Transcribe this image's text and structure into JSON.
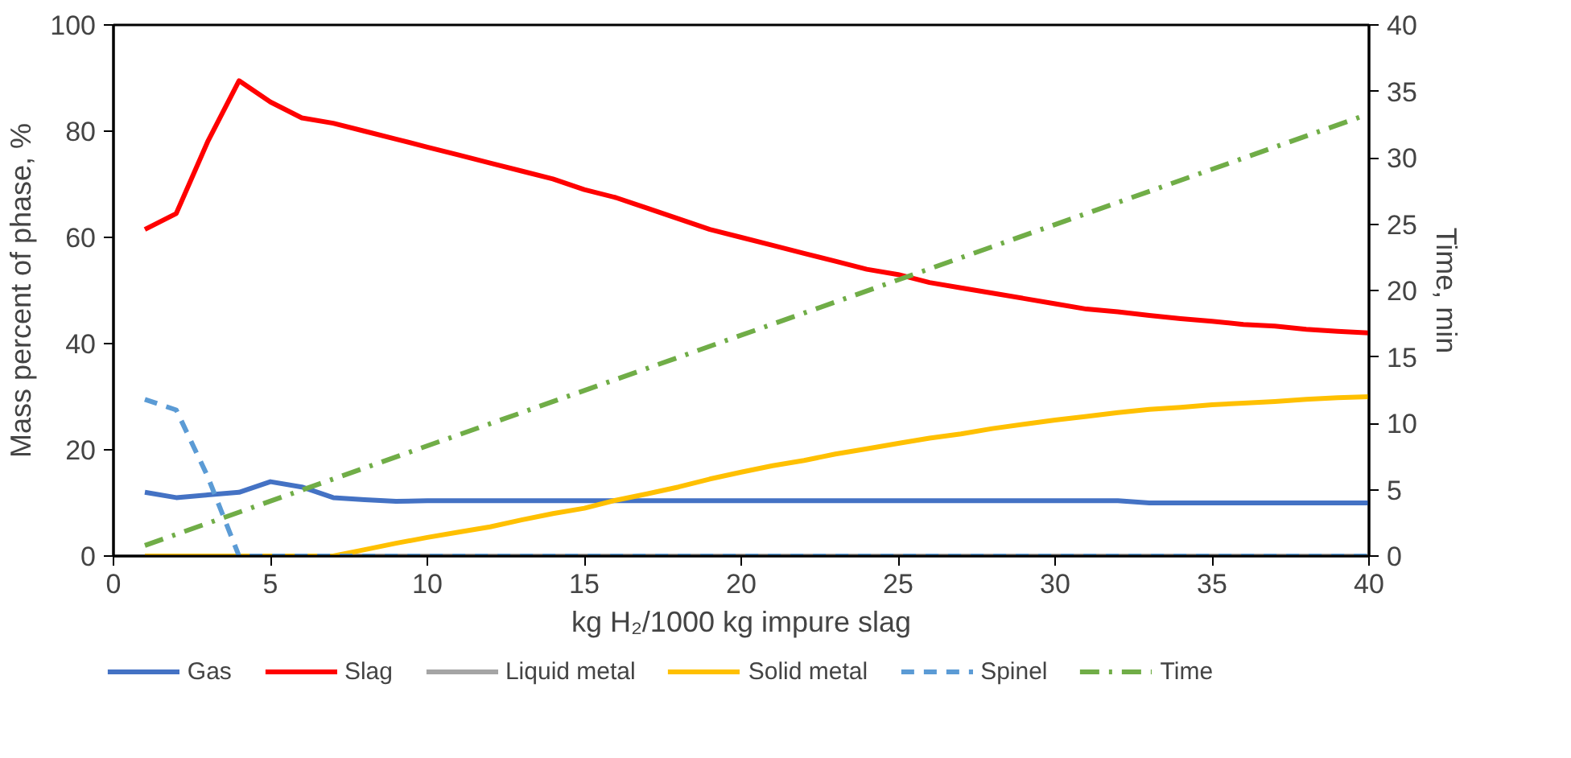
{
  "chart_data": {
    "type": "line",
    "xlabel": "kg H₂/1000 kg impure slag",
    "ylabel": "Mass percent of phase, %",
    "y2label": "Time, min",
    "x": [
      1,
      2,
      3,
      4,
      5,
      6,
      7,
      8,
      9,
      10,
      11,
      12,
      13,
      14,
      15,
      16,
      17,
      18,
      19,
      20,
      21,
      22,
      23,
      24,
      25,
      26,
      27,
      28,
      29,
      30,
      31,
      32,
      33,
      34,
      35,
      36,
      37,
      38,
      39,
      40
    ],
    "series": [
      {
        "name": "Gas",
        "color": "#4472c4",
        "line_style": "solid",
        "values": [
          12,
          11,
          11.5,
          12,
          14,
          13,
          11,
          10.6,
          10.3,
          10.4,
          10.4,
          10.4,
          10.4,
          10.4,
          10.4,
          10.4,
          10.4,
          10.4,
          10.4,
          10.4,
          10.4,
          10.4,
          10.4,
          10.4,
          10.4,
          10.4,
          10.4,
          10.4,
          10.4,
          10.4,
          10.4,
          10.4,
          10,
          10,
          10,
          10,
          10,
          10,
          10,
          10
        ]
      },
      {
        "name": "Slag",
        "color": "#ff0000",
        "line_style": "solid",
        "values": [
          61.5,
          64.5,
          78,
          89.5,
          85.5,
          82.5,
          81.5,
          80,
          78.5,
          77,
          75.5,
          74,
          72.5,
          71,
          69,
          67.5,
          65.5,
          63.5,
          61.5,
          60,
          58.5,
          57,
          55.5,
          54,
          53,
          51.5,
          50.5,
          49.5,
          48.5,
          47.5,
          46.5,
          46,
          45.3,
          44.7,
          44.2,
          43.6,
          43.3,
          42.7,
          42.3,
          42
        ]
      },
      {
        "name": "Liquid metal",
        "color": "#a5a5a5",
        "line_style": "solid",
        "values": [
          0,
          0,
          0,
          0,
          0,
          0,
          0,
          0,
          0,
          0,
          0,
          0,
          0,
          0,
          0,
          0,
          0,
          0,
          0,
          0,
          0,
          0,
          0,
          0,
          0,
          0,
          0,
          0,
          0,
          0,
          0,
          0,
          0,
          0,
          0,
          0,
          0,
          0,
          0,
          0
        ]
      },
      {
        "name": "Solid metal",
        "color": "#ffc000",
        "line_style": "solid",
        "values": [
          0,
          0,
          0,
          0,
          0,
          0,
          0,
          1.2,
          2.4,
          3.5,
          4.5,
          5.5,
          6.8,
          8,
          9,
          10.5,
          11.7,
          13,
          14.5,
          15.8,
          17,
          18,
          19.2,
          20.2,
          21.2,
          22.2,
          23,
          24,
          24.8,
          25.6,
          26.3,
          27,
          27.6,
          28,
          28.5,
          28.8,
          29.1,
          29.5,
          29.8,
          30
        ]
      },
      {
        "name": "Spinel",
        "color": "#5b9bd5",
        "line_style": "dashed",
        "values": [
          29.5,
          27.5,
          15,
          0,
          0,
          0,
          0,
          0,
          0,
          0,
          0,
          0,
          0,
          0,
          0,
          0,
          0,
          0,
          0,
          0,
          0,
          0,
          0,
          0,
          0,
          0,
          0,
          0,
          0,
          0,
          0,
          0,
          0,
          0,
          0,
          0,
          0,
          0,
          0,
          0
        ]
      },
      {
        "name": "Time",
        "color": "#70ad47",
        "line_style": "dashdot",
        "axis": "y2",
        "x": [
          1,
          40
        ],
        "values": [
          0.8,
          33.3
        ]
      }
    ],
    "xlim": [
      0,
      40
    ],
    "xticks": [
      0,
      5,
      10,
      15,
      20,
      25,
      30,
      35,
      40
    ],
    "ylim": [
      0,
      100
    ],
    "yticks": [
      0,
      20,
      40,
      60,
      80,
      100
    ],
    "y2lim": [
      0,
      40
    ],
    "y2ticks": [
      0,
      5,
      10,
      15,
      20,
      25,
      30,
      35,
      40
    ],
    "grid": false,
    "legend": "bottom"
  }
}
